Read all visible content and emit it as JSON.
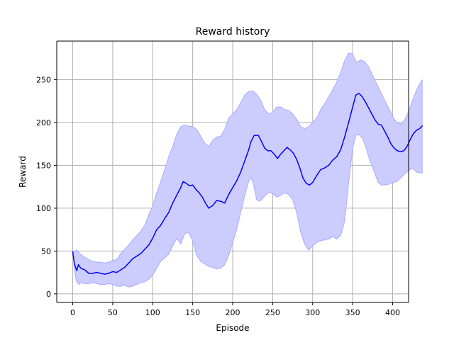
{
  "chart_data": {
    "type": "line",
    "title": "Reward history",
    "xlabel": "Episode",
    "ylabel": "Reward",
    "xlim": [
      -20,
      420
    ],
    "ylim": [
      -10,
      295
    ],
    "x_ticks": [
      0,
      50,
      100,
      150,
      200,
      250,
      300,
      350,
      400
    ],
    "y_ticks": [
      0,
      50,
      100,
      150,
      200,
      250
    ],
    "grid": true,
    "legend": "none",
    "colors": {
      "line": "#0000ff",
      "band_fill": "#ccccff",
      "band_stroke": "#aaaaff",
      "grid": "#b0b0b0",
      "axes": "#000000"
    },
    "series": [
      {
        "values": [
          [
            0,
            49
          ],
          [
            2,
            35
          ],
          [
            5,
            27
          ],
          [
            7,
            34
          ],
          [
            10,
            30
          ],
          [
            15,
            28
          ],
          [
            20,
            24
          ],
          [
            25,
            24
          ],
          [
            30,
            25
          ],
          [
            35,
            24
          ],
          [
            40,
            23
          ],
          [
            45,
            24
          ],
          [
            50,
            26
          ],
          [
            55,
            25
          ],
          [
            60,
            28
          ],
          [
            65,
            31
          ],
          [
            70,
            36
          ],
          [
            75,
            41
          ],
          [
            80,
            44
          ],
          [
            85,
            47
          ],
          [
            90,
            52
          ],
          [
            95,
            57
          ],
          [
            100,
            65
          ],
          [
            105,
            75
          ],
          [
            110,
            80
          ],
          [
            115,
            88
          ],
          [
            120,
            95
          ],
          [
            125,
            106
          ],
          [
            130,
            115
          ],
          [
            135,
            124
          ],
          [
            138,
            131
          ],
          [
            142,
            129
          ],
          [
            146,
            126
          ],
          [
            150,
            127
          ],
          [
            154,
            122
          ],
          [
            158,
            118
          ],
          [
            162,
            113
          ],
          [
            166,
            106
          ],
          [
            170,
            100
          ],
          [
            175,
            103
          ],
          [
            180,
            109
          ],
          [
            185,
            108
          ],
          [
            190,
            106
          ],
          [
            195,
            116
          ],
          [
            200,
            124
          ],
          [
            205,
            132
          ],
          [
            210,
            142
          ],
          [
            215,
            155
          ],
          [
            220,
            168
          ],
          [
            223,
            178
          ],
          [
            227,
            185
          ],
          [
            232,
            185
          ],
          [
            236,
            178
          ],
          [
            240,
            170
          ],
          [
            244,
            167
          ],
          [
            248,
            167
          ],
          [
            252,
            163
          ],
          [
            256,
            158
          ],
          [
            260,
            163
          ],
          [
            264,
            167
          ],
          [
            268,
            171
          ],
          [
            272,
            168
          ],
          [
            276,
            164
          ],
          [
            280,
            157
          ],
          [
            284,
            147
          ],
          [
            288,
            135
          ],
          [
            292,
            129
          ],
          [
            296,
            127
          ],
          [
            300,
            130
          ],
          [
            305,
            138
          ],
          [
            310,
            145
          ],
          [
            315,
            147
          ],
          [
            320,
            150
          ],
          [
            325,
            156
          ],
          [
            330,
            160
          ],
          [
            335,
            168
          ],
          [
            340,
            183
          ],
          [
            345,
            200
          ],
          [
            350,
            218
          ],
          [
            354,
            232
          ],
          [
            358,
            234
          ],
          [
            362,
            230
          ],
          [
            366,
            224
          ],
          [
            370,
            217
          ],
          [
            374,
            210
          ],
          [
            378,
            203
          ],
          [
            382,
            198
          ],
          [
            386,
            197
          ],
          [
            390,
            190
          ],
          [
            394,
            183
          ],
          [
            398,
            175
          ],
          [
            402,
            170
          ],
          [
            406,
            167
          ],
          [
            410,
            166
          ],
          [
            414,
            167
          ],
          [
            418,
            172
          ],
          [
            422,
            180
          ],
          [
            426,
            187
          ],
          [
            430,
            191
          ],
          [
            434,
            193
          ],
          [
            437,
            196
          ]
        ]
      }
    ],
    "band": {
      "upper": [
        [
          0,
          49
        ],
        [
          5,
          51
        ],
        [
          10,
          46
        ],
        [
          15,
          43
        ],
        [
          20,
          40
        ],
        [
          25,
          38
        ],
        [
          30,
          37
        ],
        [
          35,
          37
        ],
        [
          40,
          36
        ],
        [
          45,
          37
        ],
        [
          50,
          39
        ],
        [
          55,
          40
        ],
        [
          60,
          47
        ],
        [
          65,
          52
        ],
        [
          70,
          57
        ],
        [
          75,
          63
        ],
        [
          80,
          68
        ],
        [
          85,
          73
        ],
        [
          90,
          80
        ],
        [
          95,
          92
        ],
        [
          100,
          103
        ],
        [
          105,
          118
        ],
        [
          110,
          131
        ],
        [
          115,
          145
        ],
        [
          120,
          160
        ],
        [
          125,
          172
        ],
        [
          130,
          186
        ],
        [
          135,
          195
        ],
        [
          140,
          197
        ],
        [
          145,
          196
        ],
        [
          150,
          195
        ],
        [
          155,
          192
        ],
        [
          160,
          184
        ],
        [
          165,
          176
        ],
        [
          170,
          172
        ],
        [
          175,
          179
        ],
        [
          180,
          183
        ],
        [
          185,
          184
        ],
        [
          190,
          192
        ],
        [
          195,
          205
        ],
        [
          200,
          210
        ],
        [
          205,
          215
        ],
        [
          210,
          223
        ],
        [
          215,
          232
        ],
        [
          220,
          236
        ],
        [
          225,
          237
        ],
        [
          230,
          233
        ],
        [
          235,
          226
        ],
        [
          240,
          215
        ],
        [
          245,
          210
        ],
        [
          250,
          212
        ],
        [
          255,
          218
        ],
        [
          260,
          218
        ],
        [
          265,
          215
        ],
        [
          270,
          214
        ],
        [
          275,
          210
        ],
        [
          280,
          204
        ],
        [
          285,
          195
        ],
        [
          290,
          193
        ],
        [
          295,
          195
        ],
        [
          300,
          200
        ],
        [
          305,
          205
        ],
        [
          310,
          215
        ],
        [
          315,
          222
        ],
        [
          320,
          230
        ],
        [
          325,
          238
        ],
        [
          330,
          247
        ],
        [
          335,
          258
        ],
        [
          340,
          272
        ],
        [
          345,
          281
        ],
        [
          350,
          280
        ],
        [
          355,
          270
        ],
        [
          360,
          273
        ],
        [
          365,
          271
        ],
        [
          370,
          265
        ],
        [
          375,
          255
        ],
        [
          380,
          245
        ],
        [
          385,
          236
        ],
        [
          390,
          226
        ],
        [
          395,
          217
        ],
        [
          400,
          207
        ],
        [
          405,
          200
        ],
        [
          410,
          198
        ],
        [
          415,
          203
        ],
        [
          420,
          213
        ],
        [
          425,
          226
        ],
        [
          430,
          238
        ],
        [
          437,
          250
        ]
      ],
      "lower": [
        [
          0,
          49
        ],
        [
          3,
          22
        ],
        [
          5,
          14
        ],
        [
          8,
          11
        ],
        [
          10,
          13
        ],
        [
          15,
          12
        ],
        [
          20,
          12
        ],
        [
          25,
          13
        ],
        [
          30,
          12
        ],
        [
          35,
          11
        ],
        [
          40,
          11
        ],
        [
          45,
          12
        ],
        [
          50,
          11
        ],
        [
          55,
          9
        ],
        [
          60,
          9
        ],
        [
          65,
          10
        ],
        [
          70,
          8
        ],
        [
          75,
          9
        ],
        [
          80,
          11
        ],
        [
          85,
          13
        ],
        [
          90,
          14
        ],
        [
          95,
          17
        ],
        [
          100,
          22
        ],
        [
          105,
          30
        ],
        [
          110,
          38
        ],
        [
          115,
          42
        ],
        [
          120,
          46
        ],
        [
          125,
          56
        ],
        [
          130,
          65
        ],
        [
          135,
          58
        ],
        [
          140,
          70
        ],
        [
          145,
          72
        ],
        [
          150,
          62
        ],
        [
          155,
          45
        ],
        [
          160,
          38
        ],
        [
          165,
          35
        ],
        [
          170,
          32
        ],
        [
          175,
          31
        ],
        [
          180,
          29
        ],
        [
          185,
          30
        ],
        [
          190,
          34
        ],
        [
          195,
          45
        ],
        [
          200,
          60
        ],
        [
          205,
          75
        ],
        [
          210,
          95
        ],
        [
          215,
          115
        ],
        [
          220,
          131
        ],
        [
          223,
          136
        ],
        [
          226,
          128
        ],
        [
          230,
          110
        ],
        [
          234,
          108
        ],
        [
          238,
          112
        ],
        [
          242,
          116
        ],
        [
          246,
          119
        ],
        [
          250,
          117
        ],
        [
          255,
          113
        ],
        [
          260,
          115
        ],
        [
          265,
          118
        ],
        [
          270,
          116
        ],
        [
          275,
          110
        ],
        [
          280,
          95
        ],
        [
          285,
          72
        ],
        [
          290,
          58
        ],
        [
          295,
          51
        ],
        [
          300,
          56
        ],
        [
          305,
          60
        ],
        [
          310,
          62
        ],
        [
          315,
          63
        ],
        [
          320,
          64
        ],
        [
          325,
          67
        ],
        [
          330,
          64
        ],
        [
          335,
          68
        ],
        [
          340,
          85
        ],
        [
          345,
          130
        ],
        [
          350,
          170
        ],
        [
          354,
          185
        ],
        [
          358,
          186
        ],
        [
          362,
          182
        ],
        [
          366,
          173
        ],
        [
          370,
          160
        ],
        [
          374,
          150
        ],
        [
          378,
          140
        ],
        [
          382,
          130
        ],
        [
          386,
          127
        ],
        [
          390,
          127
        ],
        [
          395,
          128
        ],
        [
          400,
          130
        ],
        [
          405,
          131
        ],
        [
          410,
          135
        ],
        [
          415,
          140
        ],
        [
          420,
          144
        ],
        [
          425,
          147
        ],
        [
          430,
          142
        ],
        [
          437,
          141
        ]
      ]
    }
  }
}
